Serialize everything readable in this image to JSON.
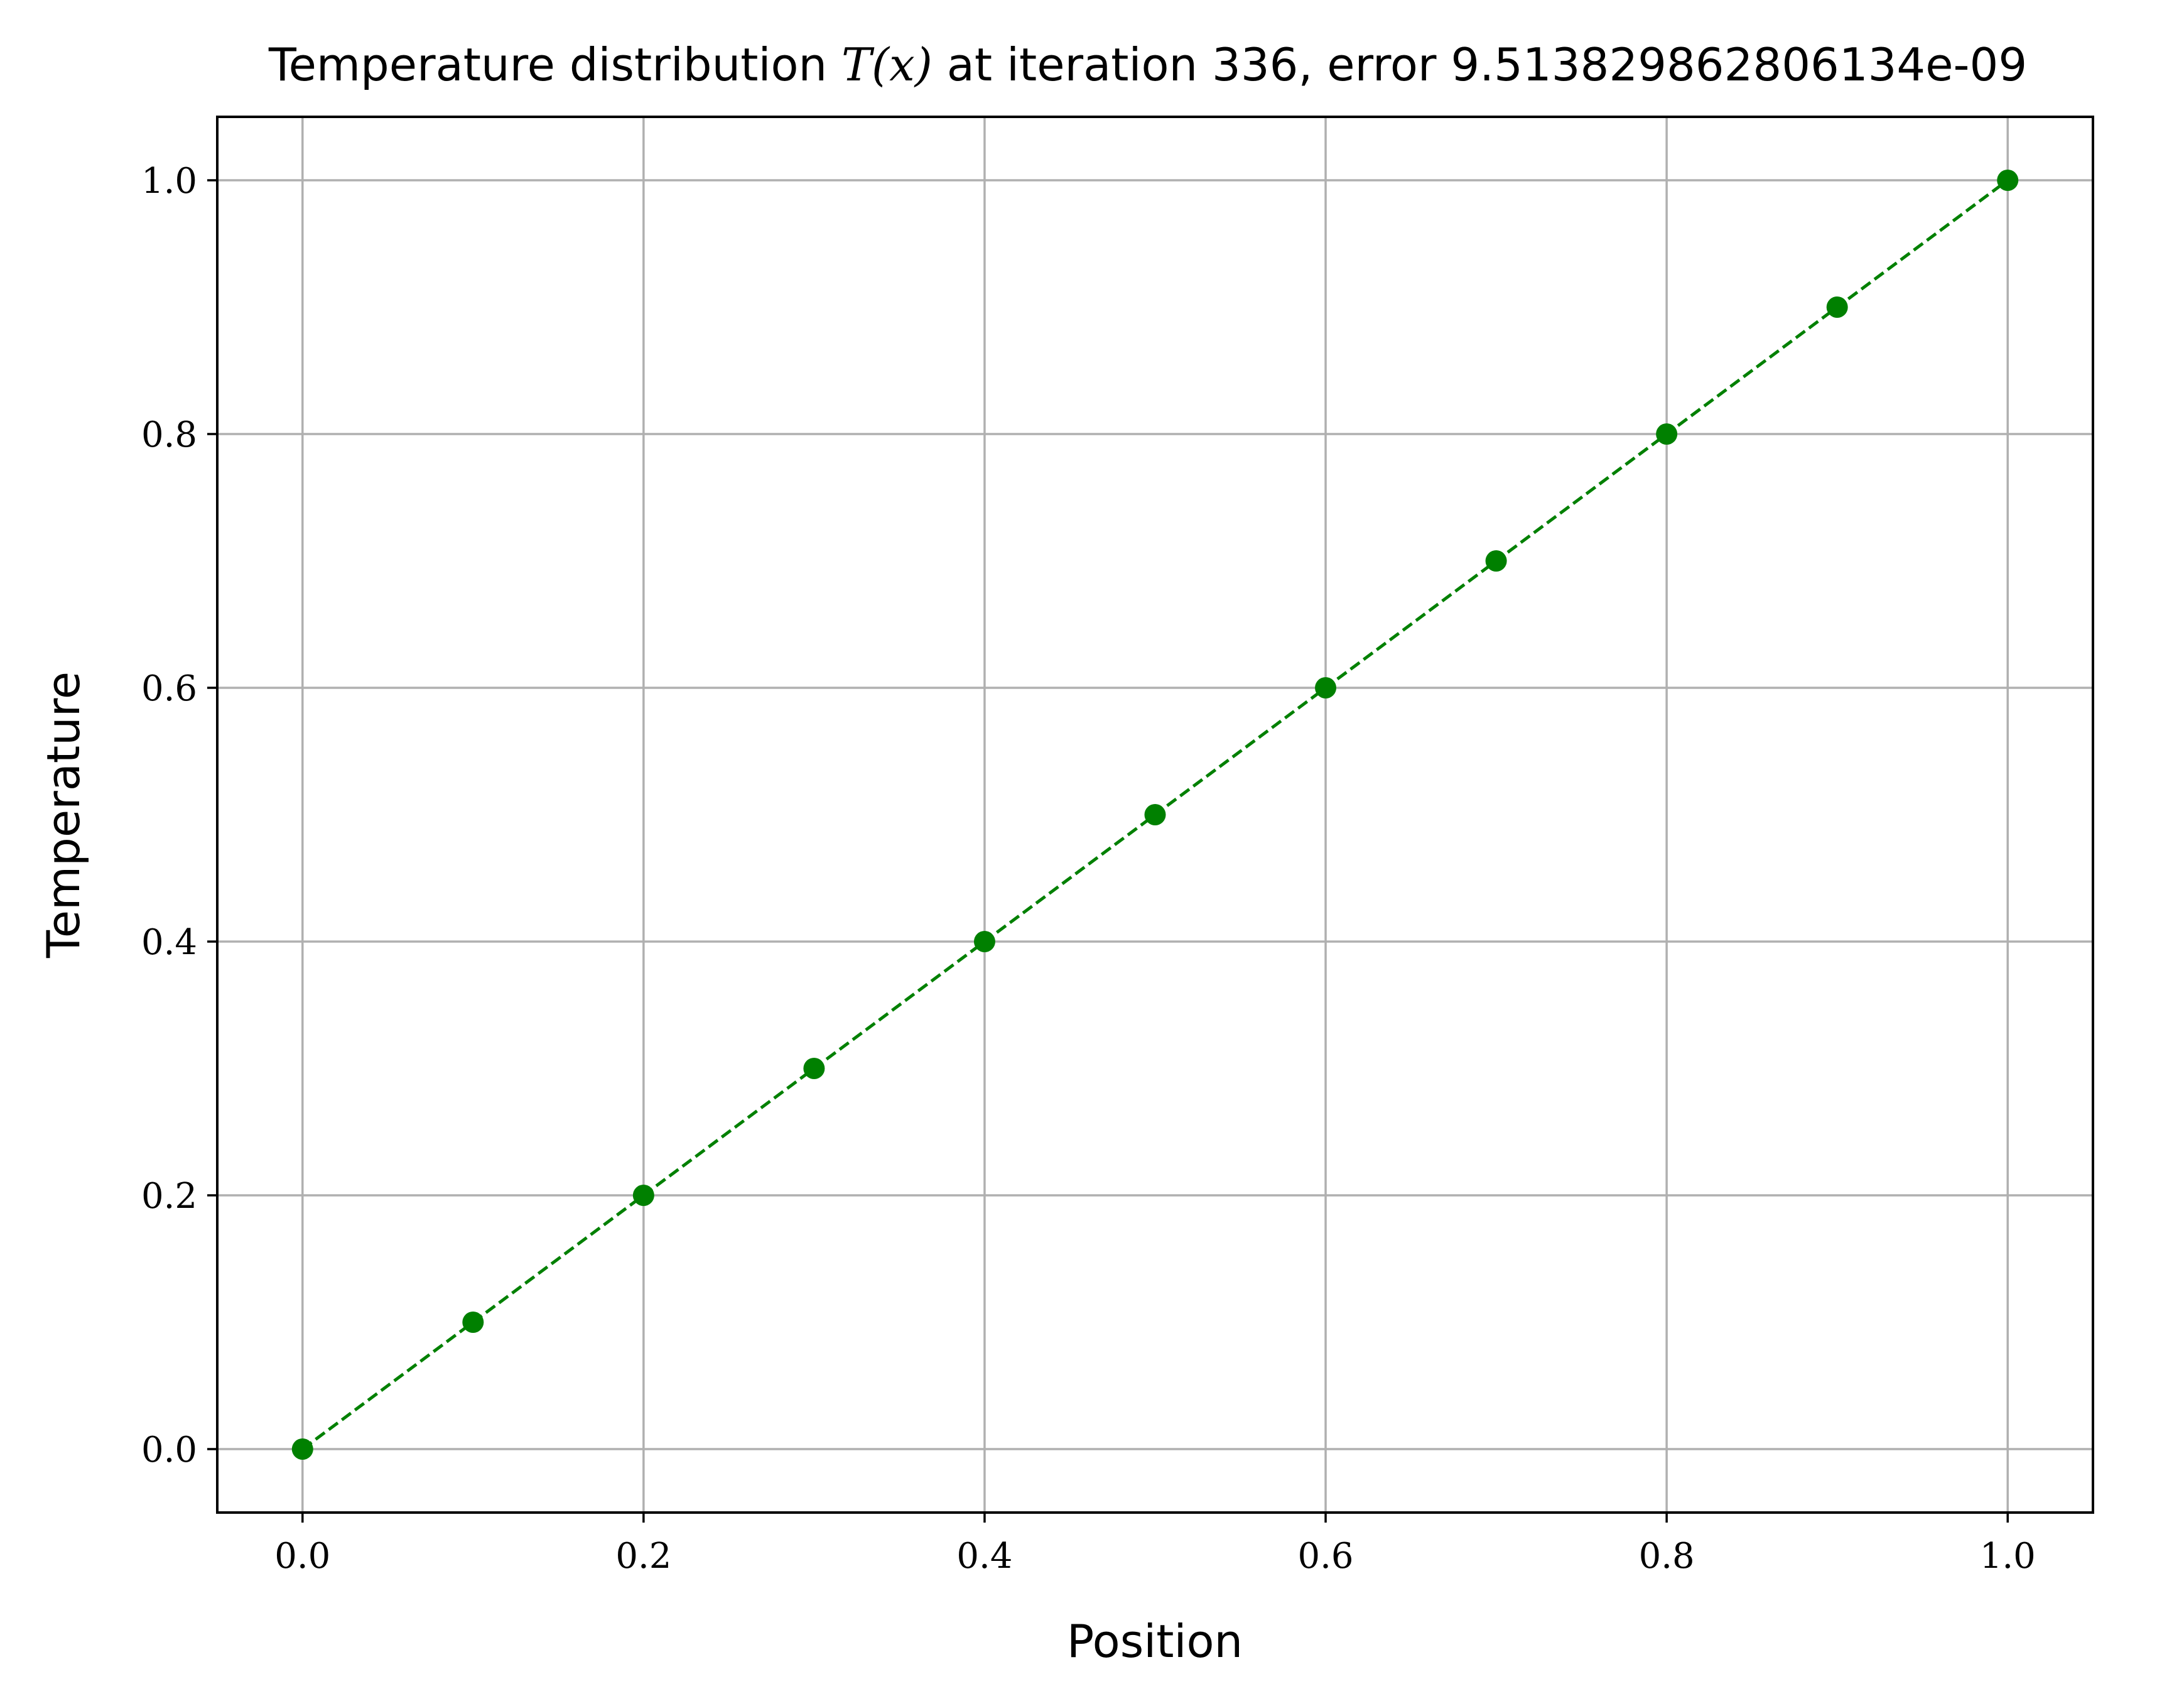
{
  "chart_data": {
    "type": "line",
    "title": {
      "prefix": "Temperature distribution ",
      "math": "T(x)",
      "suffix": " at iteration 336, error 9.513829862806134e-09"
    },
    "xlabel": "Position",
    "ylabel": "Temperature",
    "xlim": [
      -0.05,
      1.05
    ],
    "ylim": [
      -0.05,
      1.05
    ],
    "xticks": [
      0.0,
      0.2,
      0.4,
      0.6,
      0.8,
      1.0
    ],
    "yticks": [
      0.0,
      0.2,
      0.4,
      0.6,
      0.8,
      1.0
    ],
    "xtick_labels": [
      "0.0",
      "0.2",
      "0.4",
      "0.6",
      "0.8",
      "1.0"
    ],
    "ytick_labels": [
      "0.0",
      "0.2",
      "0.4",
      "0.6",
      "0.8",
      "1.0"
    ],
    "grid": true,
    "series": [
      {
        "color": "#008000",
        "line_style": "dashed",
        "marker": "circle",
        "x": [
          0.0,
          0.1,
          0.2,
          0.3,
          0.4,
          0.5,
          0.6,
          0.7,
          0.8,
          0.9,
          1.0
        ],
        "y": [
          0.0,
          0.1,
          0.2,
          0.3,
          0.4,
          0.5,
          0.6,
          0.7,
          0.8,
          0.9,
          1.0
        ]
      }
    ]
  }
}
